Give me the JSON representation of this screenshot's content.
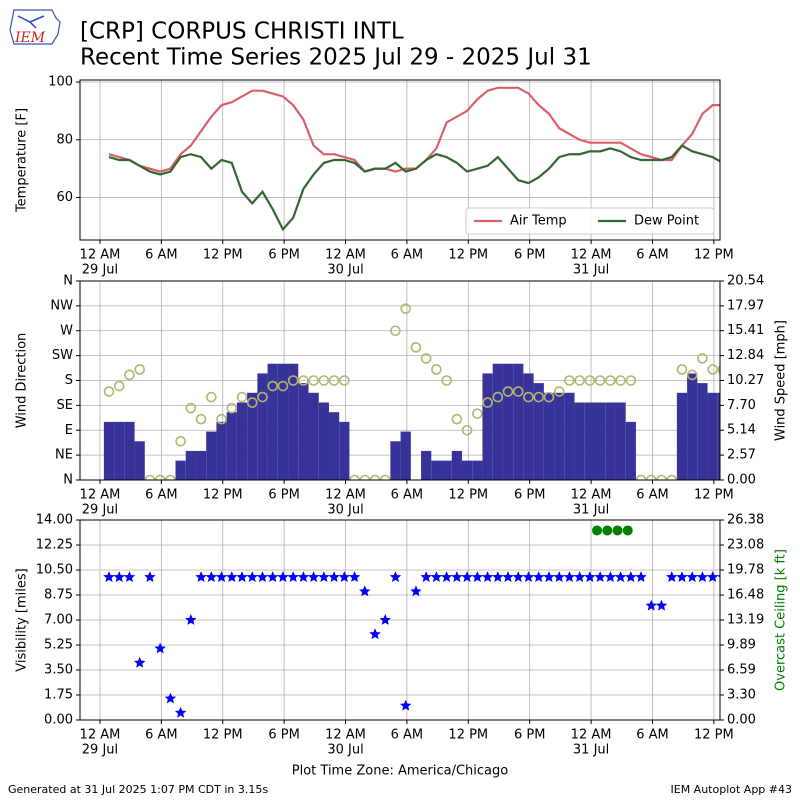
{
  "header": {
    "logo": "IEM",
    "title": "[CRP] CORPUS CHRISTI INTL",
    "subtitle": "Recent Time Series 2025 Jul 29 - 2025 Jul 31"
  },
  "footer": {
    "timezone": "Plot Time Zone: America/Chicago",
    "generated": "Generated at 31 Jul 2025 1:07 PM CDT in 3.15s",
    "app": "IEM Autoplot App #43"
  },
  "chart_data": [
    {
      "type": "line",
      "ylabel": "Temperature [F]",
      "grid": true,
      "legend": "lower right",
      "xlim": [
        "2025-07-28T22:03",
        "2025-07-31T12:36"
      ],
      "xticks": [
        {
          "value": "2025-07-29T00:00",
          "label": "12 AM",
          "date": "29 Jul"
        },
        {
          "value": "2025-07-29T06:00",
          "label": "6 AM"
        },
        {
          "value": "2025-07-29T12:00",
          "label": "12 PM"
        },
        {
          "value": "2025-07-29T18:00",
          "label": "6 PM"
        },
        {
          "value": "2025-07-30T00:00",
          "label": "12 AM",
          "date": "30 Jul"
        },
        {
          "value": "2025-07-30T06:00",
          "label": "6 AM"
        },
        {
          "value": "2025-07-30T12:00",
          "label": "12 PM"
        },
        {
          "value": "2025-07-30T18:00",
          "label": "6 PM"
        },
        {
          "value": "2025-07-31T00:00",
          "label": "12 AM",
          "date": "31 Jul"
        },
        {
          "value": "2025-07-31T06:00",
          "label": "6 AM"
        },
        {
          "value": "2025-07-31T12:00",
          "label": "12 PM"
        }
      ],
      "ylim": [
        45.3,
        100.7
      ],
      "yticks": [
        60,
        80,
        100
      ],
      "x": [
        "2025-07-29T00:53",
        "2025-07-29T01:53",
        "2025-07-29T02:53",
        "2025-07-29T03:53",
        "2025-07-29T04:53",
        "2025-07-29T05:53",
        "2025-07-29T06:53",
        "2025-07-29T07:53",
        "2025-07-29T08:53",
        "2025-07-29T09:53",
        "2025-07-29T10:53",
        "2025-07-29T11:53",
        "2025-07-29T12:53",
        "2025-07-29T13:53",
        "2025-07-29T14:53",
        "2025-07-29T15:53",
        "2025-07-29T16:53",
        "2025-07-29T17:53",
        "2025-07-29T18:53",
        "2025-07-29T19:53",
        "2025-07-29T20:53",
        "2025-07-29T21:53",
        "2025-07-29T22:53",
        "2025-07-29T23:53",
        "2025-07-30T00:53",
        "2025-07-30T01:53",
        "2025-07-30T02:53",
        "2025-07-30T03:53",
        "2025-07-30T04:53",
        "2025-07-30T05:53",
        "2025-07-30T06:53",
        "2025-07-30T07:53",
        "2025-07-30T08:53",
        "2025-07-30T09:53",
        "2025-07-30T10:53",
        "2025-07-30T11:53",
        "2025-07-30T12:53",
        "2025-07-30T13:53",
        "2025-07-30T14:53",
        "2025-07-30T15:53",
        "2025-07-30T16:53",
        "2025-07-30T17:53",
        "2025-07-30T18:53",
        "2025-07-30T19:53",
        "2025-07-30T20:53",
        "2025-07-30T21:53",
        "2025-07-30T22:53",
        "2025-07-30T23:53",
        "2025-07-31T00:53",
        "2025-07-31T01:53",
        "2025-07-31T02:53",
        "2025-07-31T03:53",
        "2025-07-31T04:53",
        "2025-07-31T05:53",
        "2025-07-31T06:53",
        "2025-07-31T07:53",
        "2025-07-31T08:53",
        "2025-07-31T09:53",
        "2025-07-31T10:53",
        "2025-07-31T11:53",
        "2025-07-31T12:53"
      ],
      "series": [
        {
          "name": "Air Temp",
          "type": "line",
          "color": "#d9606a",
          "values": [
            75,
            74,
            73,
            71,
            70,
            69,
            70,
            75,
            78,
            83,
            88,
            92,
            93,
            95,
            97,
            97,
            96,
            95,
            92,
            87,
            78,
            75,
            75,
            74,
            73,
            69,
            70,
            70,
            69,
            70,
            70,
            73,
            77,
            86,
            88,
            90,
            94,
            97,
            98,
            98,
            98,
            96,
            92,
            89,
            84,
            82,
            80,
            79,
            79,
            79,
            79,
            77,
            75,
            74,
            73,
            73,
            78,
            82,
            89,
            92,
            92
          ]
        },
        {
          "name": "Dew Point",
          "type": "line",
          "color": "#336633",
          "values": [
            74,
            73,
            73,
            71,
            69,
            68,
            69,
            74,
            75,
            74,
            70,
            73,
            72,
            62,
            58,
            62,
            56,
            49,
            53,
            63,
            68,
            72,
            73,
            73,
            72,
            69,
            70,
            70,
            72,
            69,
            70,
            73,
            75,
            74,
            72,
            69,
            70,
            71,
            74,
            70,
            66,
            65,
            67,
            70,
            74,
            75,
            75,
            76,
            76,
            77,
            76,
            74,
            73,
            73,
            73,
            74,
            78,
            76,
            75,
            74,
            72
          ]
        }
      ]
    },
    {
      "type": "combo",
      "ylabel": "Wind Direction",
      "y2label": "Wind Speed [mph]",
      "grid": true,
      "xlim": [
        "2025-07-28T22:03",
        "2025-07-31T12:36"
      ],
      "xticks": [
        {
          "value": "2025-07-29T00:00",
          "label": "12 AM",
          "date": "29 Jul"
        },
        {
          "value": "2025-07-29T06:00",
          "label": "6 AM"
        },
        {
          "value": "2025-07-29T12:00",
          "label": "12 PM"
        },
        {
          "value": "2025-07-29T18:00",
          "label": "6 PM"
        },
        {
          "value": "2025-07-30T00:00",
          "label": "12 AM",
          "date": "30 Jul"
        },
        {
          "value": "2025-07-30T06:00",
          "label": "6 AM"
        },
        {
          "value": "2025-07-30T12:00",
          "label": "12 PM"
        },
        {
          "value": "2025-07-30T18:00",
          "label": "6 PM"
        },
        {
          "value": "2025-07-31T00:00",
          "label": "12 AM",
          "date": "31 Jul"
        },
        {
          "value": "2025-07-31T06:00",
          "label": "6 AM"
        },
        {
          "value": "2025-07-31T12:00",
          "label": "12 PM"
        }
      ],
      "ylim": [
        0,
        360
      ],
      "yticks": [
        {
          "value": 0,
          "label": "N"
        },
        {
          "value": 45,
          "label": "NE"
        },
        {
          "value": 90,
          "label": "E"
        },
        {
          "value": 135,
          "label": "SE"
        },
        {
          "value": 180,
          "label": "S"
        },
        {
          "value": 225,
          "label": "SW"
        },
        {
          "value": 270,
          "label": "W"
        },
        {
          "value": 315,
          "label": "NW"
        },
        {
          "value": 360,
          "label": "N"
        }
      ],
      "y2lim": [
        0,
        20.54
      ],
      "y2ticks": [
        {
          "value": 0,
          "label": "0.00"
        },
        2.57,
        5.14,
        {
          "value": 7.7,
          "label": "7.70"
        },
        10.27,
        12.84,
        15.41,
        17.97,
        20.54
      ],
      "x": [
        "2025-07-29T00:53",
        "2025-07-29T01:53",
        "2025-07-29T02:53",
        "2025-07-29T03:53",
        "2025-07-29T04:53",
        "2025-07-29T05:53",
        "2025-07-29T06:53",
        "2025-07-29T07:53",
        "2025-07-29T08:53",
        "2025-07-29T09:53",
        "2025-07-29T10:53",
        "2025-07-29T11:53",
        "2025-07-29T12:53",
        "2025-07-29T13:53",
        "2025-07-29T14:53",
        "2025-07-29T15:53",
        "2025-07-29T16:53",
        "2025-07-29T17:53",
        "2025-07-29T18:53",
        "2025-07-29T19:53",
        "2025-07-29T20:53",
        "2025-07-29T21:53",
        "2025-07-29T22:53",
        "2025-07-29T23:53",
        "2025-07-30T00:53",
        "2025-07-30T01:53",
        "2025-07-30T02:53",
        "2025-07-30T03:53",
        "2025-07-30T04:53",
        "2025-07-30T05:53",
        "2025-07-30T06:53",
        "2025-07-30T07:53",
        "2025-07-30T08:53",
        "2025-07-30T09:53",
        "2025-07-30T10:53",
        "2025-07-30T11:53",
        "2025-07-30T12:53",
        "2025-07-30T13:53",
        "2025-07-30T14:53",
        "2025-07-30T15:53",
        "2025-07-30T16:53",
        "2025-07-30T17:53",
        "2025-07-30T18:53",
        "2025-07-30T19:53",
        "2025-07-30T20:53",
        "2025-07-30T21:53",
        "2025-07-30T22:53",
        "2025-07-30T23:53",
        "2025-07-31T00:53",
        "2025-07-31T01:53",
        "2025-07-31T02:53",
        "2025-07-31T03:53",
        "2025-07-31T04:53",
        "2025-07-31T05:53",
        "2025-07-31T06:53",
        "2025-07-31T07:53",
        "2025-07-31T08:53",
        "2025-07-31T09:53",
        "2025-07-31T10:53",
        "2025-07-31T11:53",
        "2025-07-31T12:53"
      ],
      "series": [
        {
          "type": "bar",
          "axis": "y2",
          "color": "#383399",
          "values": [
            6,
            6,
            6,
            4,
            0,
            0,
            0,
            2,
            3,
            3,
            5,
            6,
            7,
            8,
            9,
            11,
            12,
            12,
            12,
            10,
            9,
            8,
            7,
            6,
            0,
            0,
            0,
            0,
            4,
            5,
            0,
            3,
            2,
            2,
            3,
            2,
            2,
            11,
            12,
            12,
            12,
            11,
            10,
            9,
            9,
            9,
            8,
            8,
            8,
            8,
            8,
            6,
            0,
            0,
            0,
            0,
            9,
            11,
            10,
            9,
            9
          ]
        },
        {
          "type": "scatter",
          "marker": "circle",
          "color": "#b5b56e",
          "values": [
            160,
            170,
            190,
            200,
            0,
            0,
            0,
            70,
            130,
            110,
            150,
            110,
            130,
            150,
            140,
            150,
            170,
            170,
            180,
            180,
            180,
            180,
            180,
            180,
            0,
            0,
            0,
            0,
            270,
            310,
            240,
            220,
            200,
            180,
            110,
            90,
            120,
            140,
            150,
            160,
            160,
            150,
            150,
            150,
            160,
            180,
            180,
            180,
            180,
            180,
            180,
            180,
            0,
            0,
            0,
            0,
            200,
            190,
            220,
            200,
            200
          ]
        }
      ]
    },
    {
      "type": "scatter",
      "ylabel": "Visibility [miles]",
      "y2label": "Overcast Ceiling [k ft]",
      "y2label_color": "#008000",
      "grid": true,
      "xlim": [
        "2025-07-28T22:03",
        "2025-07-31T12:36"
      ],
      "xticks": [
        {
          "value": "2025-07-29T00:00",
          "label": "12 AM",
          "date": "29 Jul"
        },
        {
          "value": "2025-07-29T06:00",
          "label": "6 AM"
        },
        {
          "value": "2025-07-29T12:00",
          "label": "12 PM"
        },
        {
          "value": "2025-07-29T18:00",
          "label": "6 PM"
        },
        {
          "value": "2025-07-30T00:00",
          "label": "12 AM",
          "date": "30 Jul"
        },
        {
          "value": "2025-07-30T06:00",
          "label": "6 AM"
        },
        {
          "value": "2025-07-30T12:00",
          "label": "12 PM"
        },
        {
          "value": "2025-07-30T18:00",
          "label": "6 PM"
        },
        {
          "value": "2025-07-31T00:00",
          "label": "12 AM",
          "date": "31 Jul"
        },
        {
          "value": "2025-07-31T06:00",
          "label": "6 AM"
        },
        {
          "value": "2025-07-31T12:00",
          "label": "12 PM"
        }
      ],
      "ylim": [
        0,
        14
      ],
      "yticks": [
        {
          "value": 0,
          "label": "0.00"
        },
        1.75,
        {
          "value": 3.5,
          "label": "3.50"
        },
        5.25,
        {
          "value": 7,
          "label": "7.00"
        },
        8.75,
        {
          "value": 10.5,
          "label": "10.50"
        },
        12.25,
        {
          "value": 14,
          "label": "14.00"
        }
      ],
      "y2lim": [
        0,
        26.38
      ],
      "y2ticks": [
        {
          "value": 0,
          "label": "0.00"
        },
        {
          "value": 3.3,
          "label": "3.30"
        },
        6.59,
        9.89,
        13.19,
        16.48,
        19.78,
        23.08,
        26.38
      ],
      "x": [
        "2025-07-29T00:53",
        "2025-07-29T01:53",
        "2025-07-29T02:53",
        "2025-07-29T03:53",
        "2025-07-29T04:53",
        "2025-07-29T05:53",
        "2025-07-29T06:53",
        "2025-07-29T07:53",
        "2025-07-29T08:53",
        "2025-07-29T09:53",
        "2025-07-29T10:53",
        "2025-07-29T11:53",
        "2025-07-29T12:53",
        "2025-07-29T13:53",
        "2025-07-29T14:53",
        "2025-07-29T15:53",
        "2025-07-29T16:53",
        "2025-07-29T17:53",
        "2025-07-29T18:53",
        "2025-07-29T19:53",
        "2025-07-29T20:53",
        "2025-07-29T21:53",
        "2025-07-29T22:53",
        "2025-07-29T23:53",
        "2025-07-30T00:53",
        "2025-07-30T01:53",
        "2025-07-30T02:53",
        "2025-07-30T03:53",
        "2025-07-30T04:53",
        "2025-07-30T05:53",
        "2025-07-30T06:53",
        "2025-07-30T07:53",
        "2025-07-30T08:53",
        "2025-07-30T09:53",
        "2025-07-30T10:53",
        "2025-07-30T11:53",
        "2025-07-30T12:53",
        "2025-07-30T13:53",
        "2025-07-30T14:53",
        "2025-07-30T15:53",
        "2025-07-30T16:53",
        "2025-07-30T17:53",
        "2025-07-30T18:53",
        "2025-07-30T19:53",
        "2025-07-30T20:53",
        "2025-07-30T21:53",
        "2025-07-30T22:53",
        "2025-07-30T23:53",
        "2025-07-31T00:53",
        "2025-07-31T01:53",
        "2025-07-31T02:53",
        "2025-07-31T03:53",
        "2025-07-31T04:53",
        "2025-07-31T05:53",
        "2025-07-31T06:53",
        "2025-07-31T07:53",
        "2025-07-31T08:53",
        "2025-07-31T09:53",
        "2025-07-31T10:53",
        "2025-07-31T11:53",
        "2025-07-31T12:53"
      ],
      "series": [
        {
          "type": "scatter",
          "marker": "star",
          "color": "#0000ff",
          "values": [
            10,
            10,
            10,
            4,
            10,
            5,
            1.5,
            0.5,
            7,
            10,
            10,
            10,
            10,
            10,
            10,
            10,
            10,
            10,
            10,
            10,
            10,
            10,
            10,
            10,
            10,
            9,
            6,
            7,
            10,
            1,
            9,
            10,
            10,
            10,
            10,
            10,
            10,
            10,
            10,
            10,
            10,
            10,
            10,
            10,
            10,
            10,
            10,
            10,
            10,
            10,
            10,
            10,
            10,
            8,
            8,
            10,
            10,
            10,
            10,
            10,
            10
          ]
        },
        {
          "type": "scatter",
          "marker": "dot",
          "axis": "y2",
          "color": "#008000",
          "x": [
            "2025-07-31T00:35",
            "2025-07-31T01:35",
            "2025-07-31T02:35",
            "2025-07-31T03:35"
          ],
          "values": [
            25,
            25,
            25,
            25
          ]
        }
      ]
    }
  ]
}
